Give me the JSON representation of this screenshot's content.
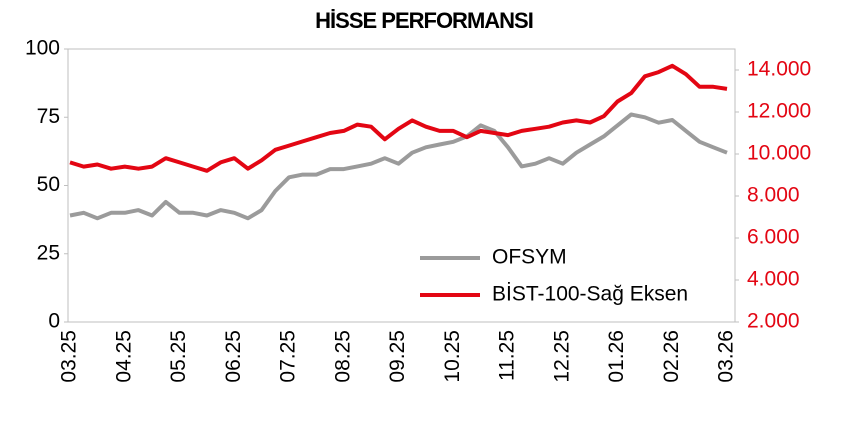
{
  "chart_data": {
    "type": "line",
    "title": "HİSSE PERFORMANSI",
    "categories": [
      "03.25",
      null,
      null,
      null,
      "04.25",
      null,
      null,
      null,
      "05.25",
      null,
      null,
      null,
      "06.25",
      null,
      null,
      null,
      "07.25",
      null,
      null,
      null,
      "08.25",
      null,
      null,
      null,
      "09.25",
      null,
      null,
      null,
      "10.25",
      null,
      null,
      null,
      "11.25",
      null,
      null,
      null,
      "12.25",
      null,
      null,
      null,
      "01.26",
      null,
      null,
      null,
      "02.26",
      null,
      null,
      null,
      "03.26"
    ],
    "series": [
      {
        "name": "OFSYM",
        "color": "#9b9b9b",
        "values": [
          39,
          40,
          38,
          40,
          40,
          41,
          39,
          44,
          40,
          40,
          39,
          41,
          40,
          38,
          41,
          48,
          53,
          54,
          54,
          56,
          56,
          57,
          58,
          60,
          58,
          62,
          64,
          65,
          66,
          68,
          72,
          70,
          64,
          57,
          58,
          60,
          58,
          62,
          65,
          68,
          72,
          76,
          75,
          73,
          74,
          70,
          66,
          64,
          62
        ]
      },
      {
        "name": "BİST-100-Sağ Eksen",
        "color": "#e30613",
        "axis": "y2",
        "values": [
          9600,
          9400,
          9500,
          9300,
          9400,
          9300,
          9400,
          9800,
          9600,
          9400,
          9200,
          9600,
          9800,
          9300,
          9700,
          10200,
          10400,
          10600,
          10800,
          11000,
          11100,
          11400,
          11300,
          10700,
          11200,
          11600,
          11300,
          11100,
          11100,
          10800,
          11100,
          11000,
          10900,
          11100,
          11200,
          11300,
          11500,
          11600,
          11500,
          11800,
          12500,
          12900,
          13700,
          13900,
          14200,
          13800,
          13200,
          13200,
          13100
        ]
      }
    ],
    "ylim": [
      0,
      100
    ],
    "yticks": [
      0,
      25,
      50,
      75,
      100
    ],
    "y2lim": [
      2000,
      15000
    ],
    "y2ticks": [
      {
        "value": 2000,
        "label": "2.000"
      },
      {
        "value": 4000,
        "label": "4.000"
      },
      {
        "value": 6000,
        "label": "6.000"
      },
      {
        "value": 8000,
        "label": "8.000"
      },
      {
        "value": 10000,
        "label": "10.000"
      },
      {
        "value": 12000,
        "label": "12.000"
      },
      {
        "value": 14000,
        "label": "14.000"
      }
    ],
    "y2color": "#e30613"
  }
}
